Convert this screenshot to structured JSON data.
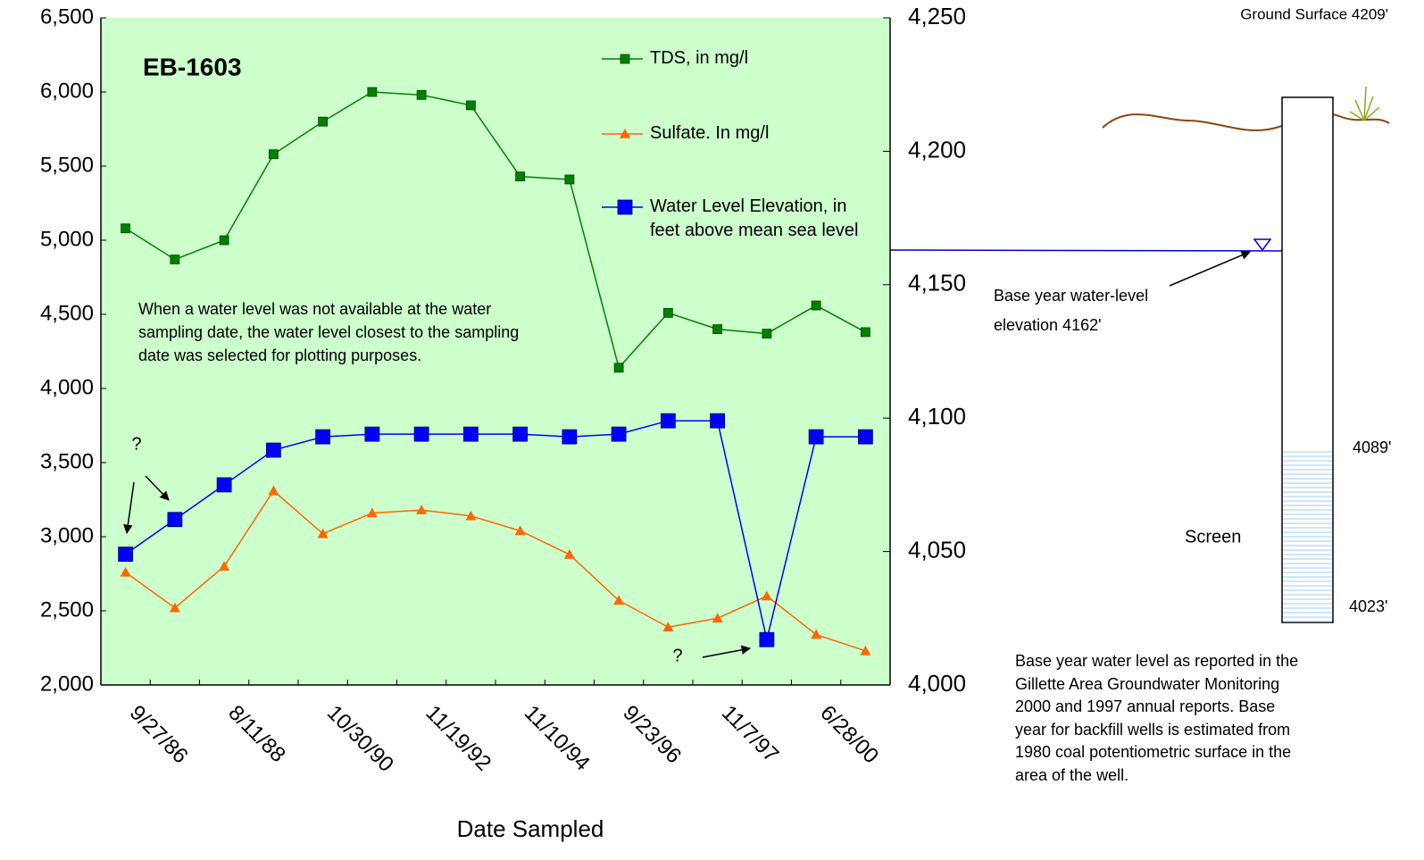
{
  "chart_data": {
    "type": "line",
    "title": "EB-1603",
    "x_label": "Date Sampled",
    "categories": [
      "9/27/86",
      null,
      "8/11/88",
      null,
      "10/30/90",
      null,
      "11/19/92",
      null,
      "11/10/94",
      null,
      "9/23/96",
      null,
      "11/7/97",
      null,
      "6/28/00",
      null
    ],
    "series": [
      {
        "name": "TDS, in mg/l",
        "color": "#008000",
        "marker": "square",
        "values": [
          5080,
          4870,
          5000,
          5580,
          5800,
          6000,
          5980,
          5910,
          5430,
          5410,
          4140,
          4510,
          4400,
          4370,
          4560,
          4380
        ]
      },
      {
        "name": "Sulfate. In mg/l",
        "color": "#ff6600",
        "marker": "triangle",
        "values": [
          2760,
          2520,
          2800,
          3310,
          3020,
          3160,
          3180,
          3140,
          3040,
          2880,
          2570,
          2390,
          2450,
          2600,
          2340,
          2230
        ]
      },
      {
        "name": "Water Level Elevation, in feet above mean sea level",
        "color": "#0000ff",
        "marker": "square",
        "axis": "y2",
        "values": [
          4049,
          4062,
          4075,
          4088,
          4093,
          4094,
          4094,
          4094,
          4094,
          4093,
          4094,
          4099,
          4099,
          4017,
          4093,
          4093
        ]
      }
    ],
    "ylim": [
      2000,
      6500
    ],
    "yticks": [
      {
        "value": 2000,
        "label": "2,000"
      },
      {
        "value": 2500,
        "label": "2,500"
      },
      {
        "value": 3000,
        "label": "3,000"
      },
      {
        "value": 3500,
        "label": "3,500"
      },
      {
        "value": 4000,
        "label": "4,000"
      },
      {
        "value": 4500,
        "label": "4,500"
      },
      {
        "value": 5000,
        "label": "5,000"
      },
      {
        "value": 5500,
        "label": "5,500"
      },
      {
        "value": 6000,
        "label": "6,000"
      },
      {
        "value": 6500,
        "label": "6,500"
      }
    ],
    "y2lim": [
      4000,
      4250
    ],
    "y2ticks": [
      {
        "value": 4000,
        "label": "4,000"
      },
      {
        "value": 4050,
        "label": "4,050"
      },
      {
        "value": 4100,
        "label": "4,100"
      },
      {
        "value": 4150,
        "label": "4,150"
      },
      {
        "value": 4200,
        "label": "4,200"
      },
      {
        "value": 4250,
        "label": "4,250"
      }
    ],
    "grid": false,
    "legend": "upper right",
    "background": "#ccffcc",
    "annotations": [
      "When a water level was not available at the water sampling date, the water level closest to the sampling date was selected for plotting purposes.",
      "?",
      "?",
      "?"
    ]
  },
  "well_diagram": {
    "ground_surface": "Ground Surface 4209'",
    "water_level_label": "Base year water-level elevation 4162'",
    "screen_top": "4089'",
    "screen_bottom": "4023'",
    "screen_label": "Screen",
    "note": "Base year water level as reported in the Gillette Area Groundwater Monitoring 2000 and 1997 annual reports.  Base year for backfill wells is estimated from 1980 coal potentiometric surface in the area of the well."
  }
}
